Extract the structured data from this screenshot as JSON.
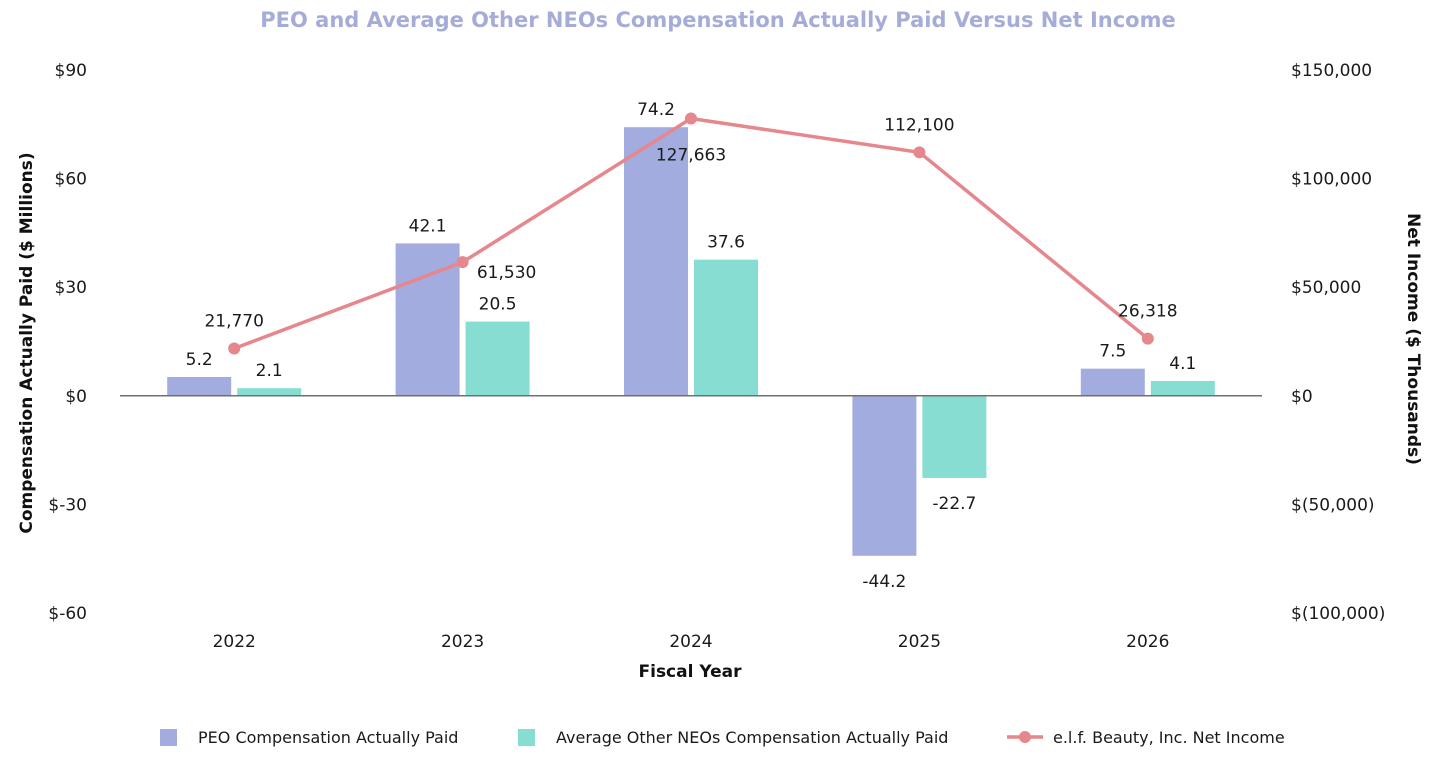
{
  "chart_data": {
    "type": "bar",
    "title": "PEO and Average Other NEOs Compensation Actually Paid Versus Net Income",
    "xlabel": "Fiscal Year",
    "ylabel": "Compensation Actually Paid ($ Millions)",
    "y2label": "Net Income ($ Thousands)",
    "categories": [
      "2022",
      "2023",
      "2024",
      "2025",
      "2026"
    ],
    "ylim": [
      -60,
      90
    ],
    "y_ticks": [
      90,
      60,
      30,
      0,
      -30,
      -60
    ],
    "y_tick_labels": [
      "$90",
      "$60",
      "$30",
      "$0",
      "$-30",
      "$-60"
    ],
    "y2lim": [
      -100000,
      150000
    ],
    "y2_ticks": [
      150000,
      100000,
      50000,
      0,
      -50000,
      -100000
    ],
    "y2_tick_labels": [
      "$150,000",
      "$100,000",
      "$50,000",
      "$0",
      "$(50,000)",
      "$(100,000)"
    ],
    "grid": false,
    "legend_position": "bottom",
    "series": [
      {
        "name": "PEO Compensation Actually Paid",
        "type": "bar",
        "axis": "left",
        "color": "#a3acdf",
        "values": [
          5.2,
          42.1,
          74.2,
          -44.2,
          7.5
        ],
        "labels": [
          "5.2",
          "42.1",
          "74.2",
          "-44.2",
          "7.5"
        ]
      },
      {
        "name": "Average Other NEOs Compensation Actually Paid",
        "type": "bar",
        "axis": "left",
        "color": "#88ddd3",
        "values": [
          2.1,
          20.5,
          37.6,
          -22.7,
          4.1
        ],
        "labels": [
          "2.1",
          "20.5",
          "37.6",
          "-22.7",
          "4.1"
        ]
      },
      {
        "name": "e.l.f. Beauty, Inc. Net Income",
        "type": "line",
        "axis": "right",
        "color": "#e6868d",
        "values": [
          21770,
          61530,
          127663,
          112100,
          26318
        ],
        "labels": [
          "21,770",
          "61,530",
          "127,663",
          "112,100",
          "26,318"
        ]
      }
    ]
  }
}
